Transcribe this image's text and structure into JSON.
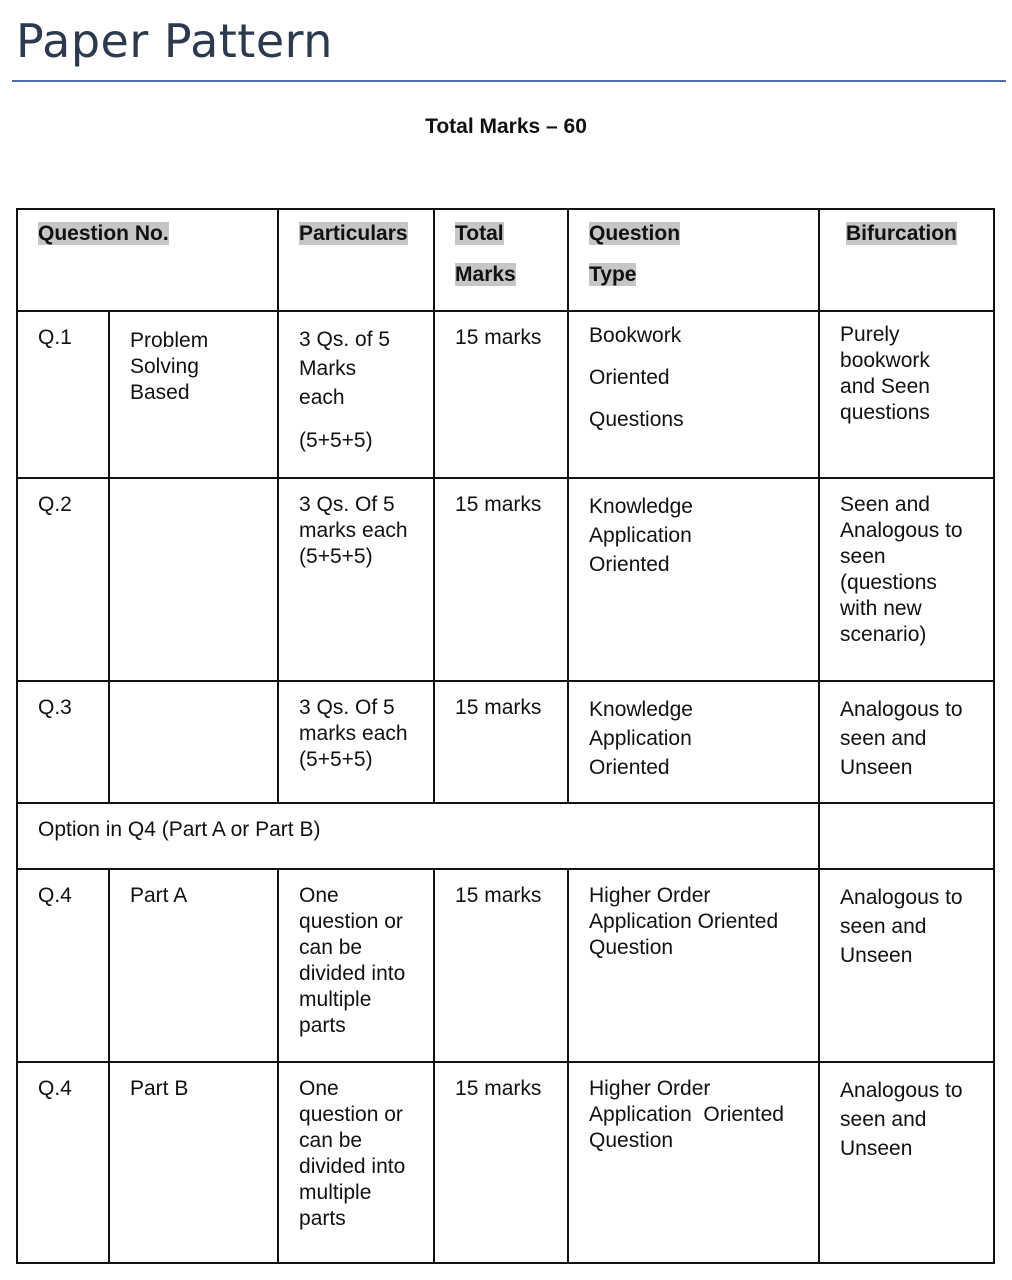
{
  "title": "Paper Pattern",
  "total_marks": "Total Marks – 60",
  "headers": {
    "question_no": "Question No.",
    "particulars": "Particulars",
    "total_marks_1": "Total",
    "total_marks_2": "Marks",
    "question_type_1": "Question",
    "question_type_2": "Type",
    "bifurcation": "Bifurcation"
  },
  "rows": [
    {
      "q": "Q.1",
      "sub": "Problem\nSolving\nBased",
      "particulars": "3 Qs. of 5\nMarks\neach",
      "particulars_extra": "(5+5+5)",
      "marks": "15 marks",
      "type": "Bookwork\nOriented\nQuestions",
      "bifurcation": "Purely\nbookwork\nand Seen\nquestions"
    },
    {
      "q": "Q.2",
      "sub": "",
      "particulars": "3 Qs. Of 5\nmarks each\n(5+5+5)",
      "marks": "15 marks",
      "type": "Knowledge\nApplication\nOriented",
      "bifurcation": "Seen and\nAnalogous to\nseen\n(questions\nwith new\nscenario)"
    },
    {
      "q": "Q.3",
      "sub": "",
      "particulars": "3 Qs. Of 5\nmarks each\n(5+5+5)",
      "marks": "15 marks",
      "type": "Knowledge\nApplication\nOriented",
      "bifurcation": "Analogous to\nseen and\nUnseen"
    },
    {
      "q": "Q.4",
      "sub": "Part A",
      "particulars": "One\nquestion or\ncan be\ndivided into\nmultiple\nparts",
      "marks": "15 marks",
      "type": "Higher Order\nApplication Oriented\nQuestion",
      "bifurcation": "Analogous to\nseen and\nUnseen"
    },
    {
      "q": "Q.4",
      "sub": "Part B",
      "particulars": "One\nquestion or\ncan be\ndivided into\nmultiple\nparts",
      "marks": "15 marks",
      "type": "Higher Order\nApplication  Oriented\nQuestion",
      "bifurcation": "Analogous to\nseen and\nUnseen"
    }
  ],
  "option_row": "Option in Q4 (Part A or Part B)"
}
